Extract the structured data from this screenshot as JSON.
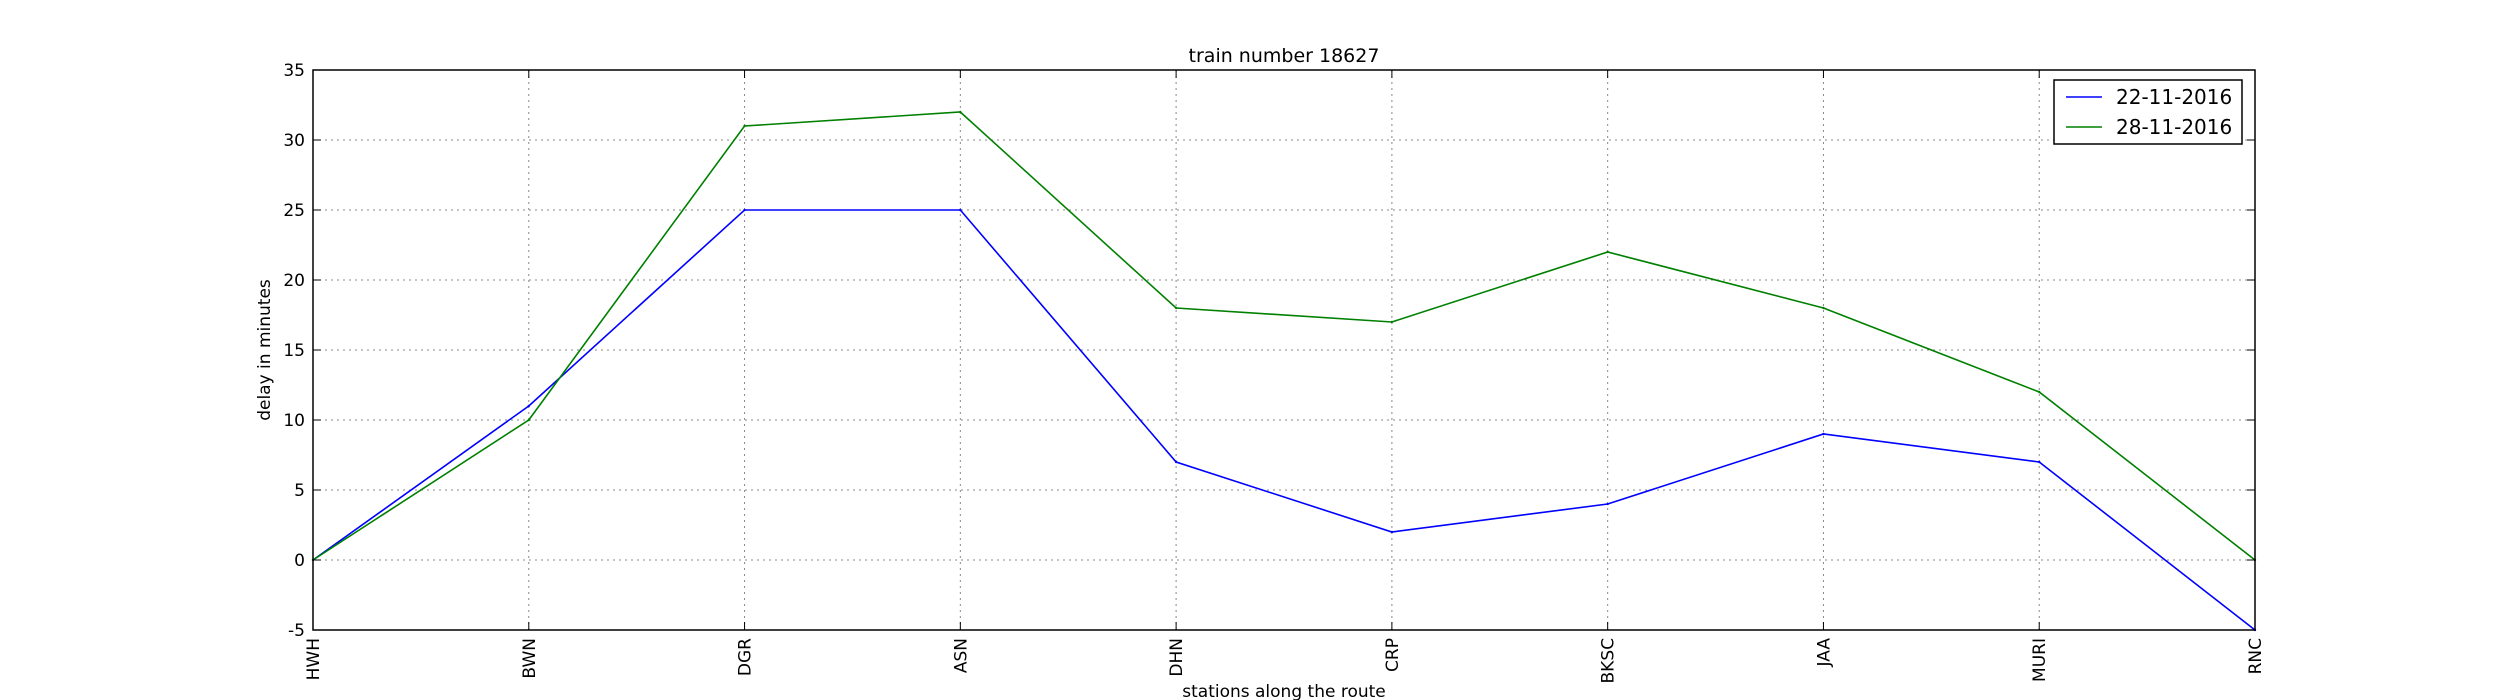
{
  "chart_data": {
    "type": "line",
    "title": "train number 18627",
    "xlabel": "stations along the route",
    "ylabel": "delay in minutes",
    "categories": [
      "HWH",
      "BWN",
      "DGR",
      "ASN",
      "DHN",
      "CRP",
      "BKSC",
      "JAA",
      "MURI",
      "RNC"
    ],
    "ylim": [
      -5,
      35
    ],
    "yticks": [
      -5,
      0,
      5,
      10,
      15,
      20,
      25,
      30,
      35
    ],
    "grid": true,
    "legend_position": "top-right",
    "series": [
      {
        "name": "22-11-2016",
        "color": "#0000ff",
        "values": [
          0,
          11,
          25,
          25,
          7,
          2,
          4,
          9,
          7,
          -5
        ]
      },
      {
        "name": "28-11-2016",
        "color": "#008000",
        "values": [
          0,
          10,
          31,
          32,
          18,
          17,
          22,
          18,
          12,
          0
        ]
      }
    ]
  }
}
